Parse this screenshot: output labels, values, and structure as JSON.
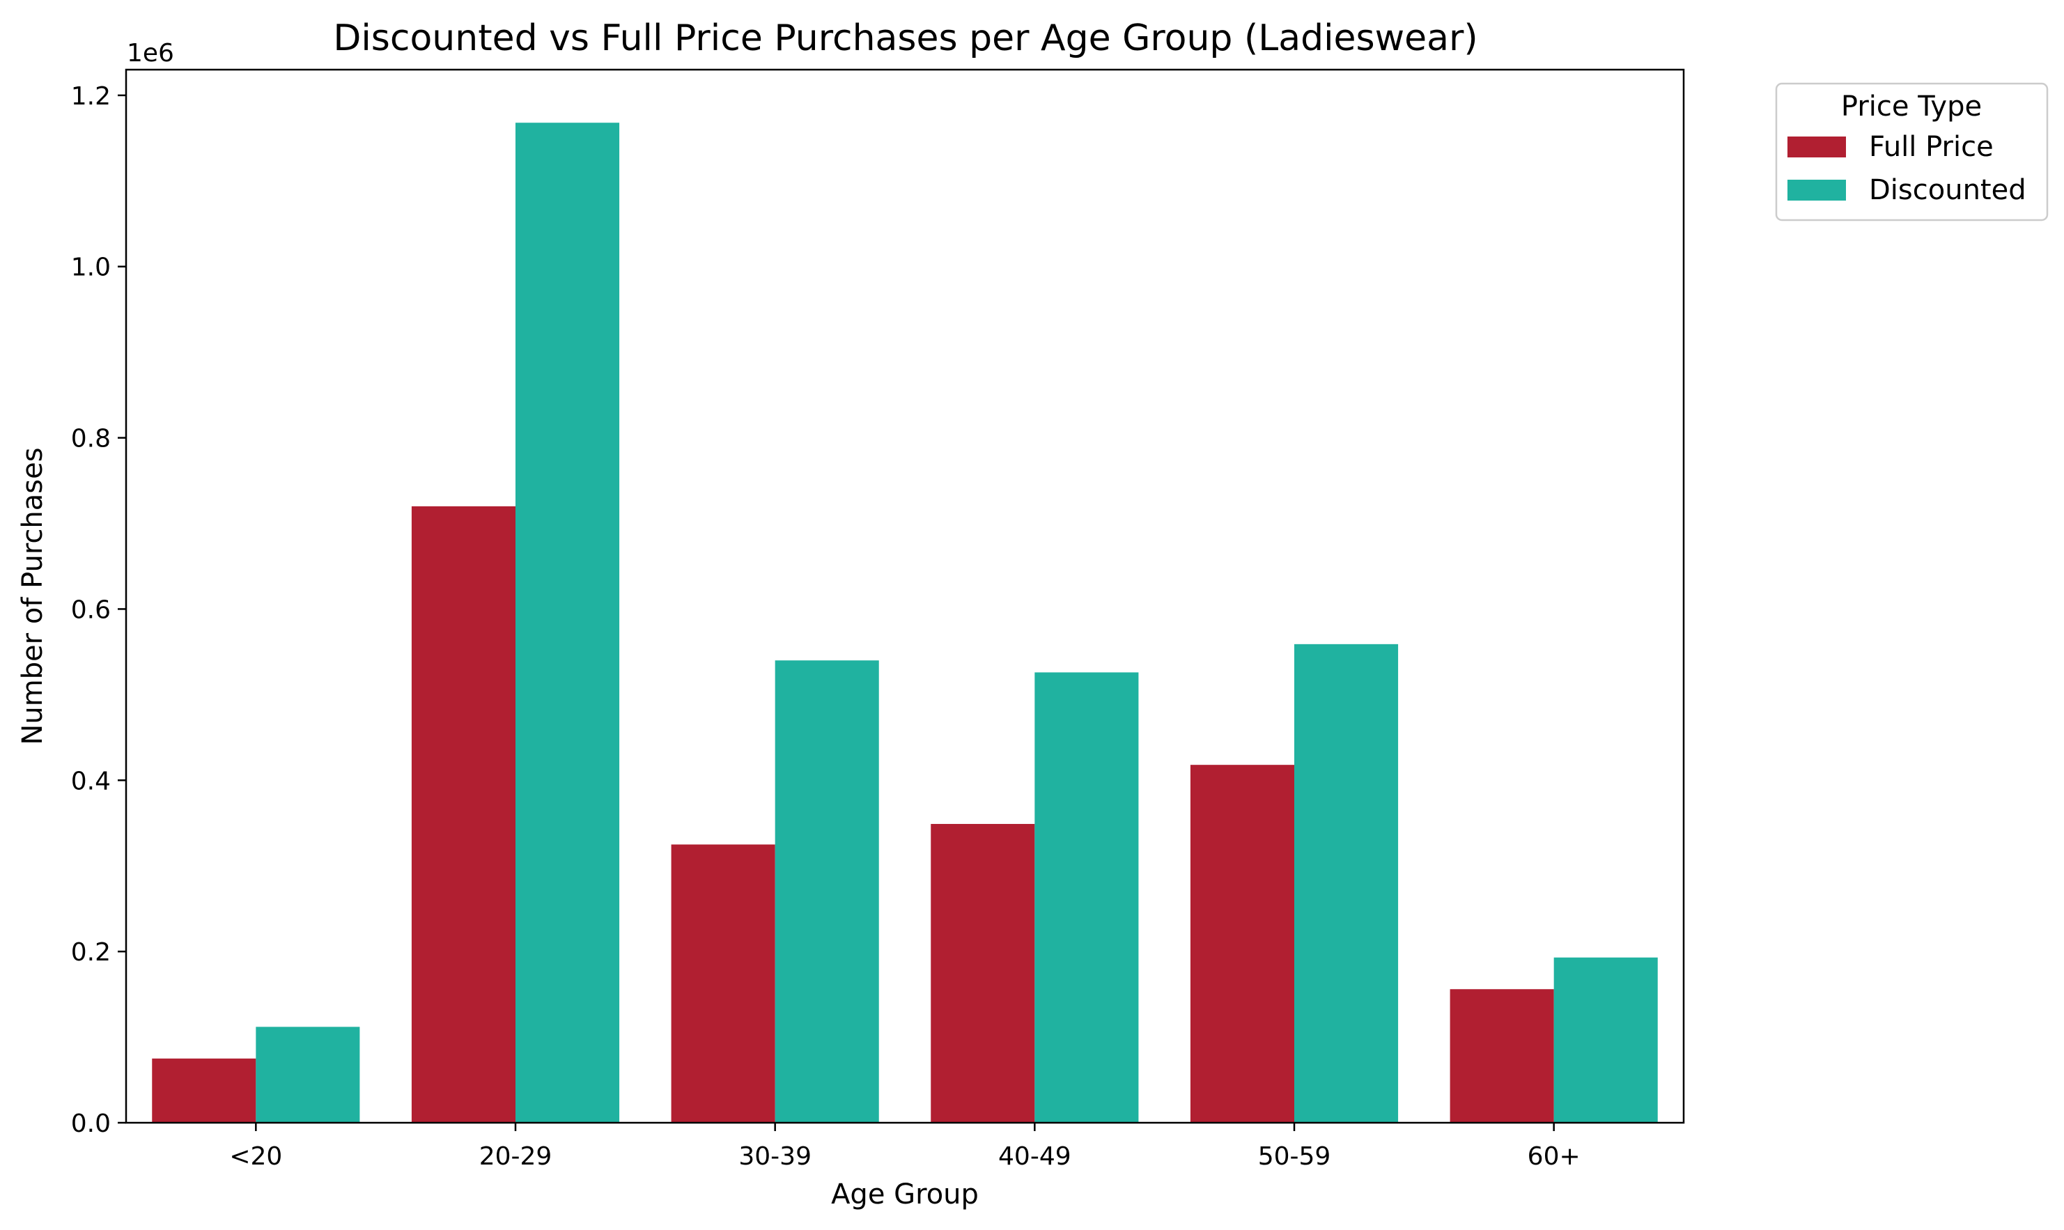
{
  "chart_data": {
    "type": "bar",
    "title": "Discounted vs Full Price Purchases per Age Group (Ladieswear)",
    "xlabel": "Age Group",
    "ylabel": "Number of Purchases",
    "y_offset_label": "1e6",
    "categories": [
      "<20",
      "20-29",
      "30-39",
      "40-49",
      "50-59",
      "60+"
    ],
    "series": [
      {
        "name": "Full Price",
        "color": "#b11f31",
        "values": [
          75000,
          720000,
          325000,
          349000,
          418000,
          156000
        ]
      },
      {
        "name": "Discounted",
        "color": "#20b2a0",
        "values": [
          112000,
          1168000,
          540000,
          526000,
          559000,
          193000
        ]
      }
    ],
    "ylim": [
      0,
      1230000.0
    ],
    "yticks": [
      {
        "value": 0,
        "label": "0.0"
      },
      {
        "value": 200000,
        "label": "0.2"
      },
      {
        "value": 400000,
        "label": "0.4"
      },
      {
        "value": 600000,
        "label": "0.6"
      },
      {
        "value": 800000,
        "label": "0.8"
      },
      {
        "value": 1000000,
        "label": "1.0"
      },
      {
        "value": 1200000,
        "label": "1.2"
      }
    ],
    "grid": false,
    "legend": {
      "title": "Price Type",
      "placement": "outside-top-right"
    }
  }
}
